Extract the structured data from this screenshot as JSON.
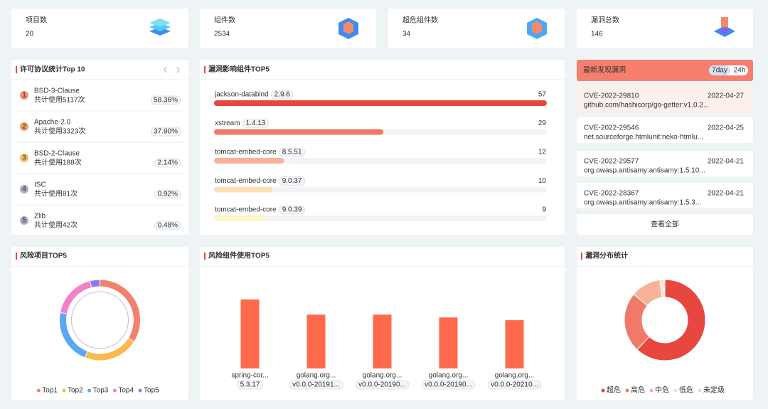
{
  "stats": [
    {
      "label": "项目数",
      "value": 20
    },
    {
      "label": "组件数",
      "value": 2534
    },
    {
      "label": "超危组件数",
      "value": 34
    },
    {
      "label": "漏洞总数",
      "value": 146
    }
  ],
  "license": {
    "title": "许可协议统计Top 10",
    "colors": [
      "#f07a5a",
      "#f08a4b",
      "#f3b33d",
      "#9aa0b5",
      "#9aa0b5"
    ],
    "items": [
      {
        "rank": 1,
        "name": "BSD-3-Clause",
        "usage": "共计使用5117次",
        "share": "58.36%"
      },
      {
        "rank": 2,
        "name": "Apache-2.0",
        "usage": "共计使用3323次",
        "share": "37.90%"
      },
      {
        "rank": 3,
        "name": "BSD-2-Clause",
        "usage": "共计使用188次",
        "share": "2.14%"
      },
      {
        "rank": 4,
        "name": "ISC",
        "usage": "共计使用81次",
        "share": "0.92%"
      },
      {
        "rank": 5,
        "name": "Zlib",
        "usage": "共计使用42次",
        "share": "0.48%"
      }
    ]
  },
  "vuln_components": {
    "title": "漏洞影响组件TOP5",
    "colors": [
      "#e8473f",
      "#f07a68",
      "#f7b29a",
      "#fbe0b8",
      "#fdf7c8"
    ],
    "items": [
      {
        "name": "jackson-databind",
        "version": "2.9.6",
        "count": 57
      },
      {
        "name": "xstream",
        "version": "1.4.13",
        "count": 29
      },
      {
        "name": "tomcat-embed-core",
        "version": "8.5.51",
        "count": 12
      },
      {
        "name": "tomcat-embed-core",
        "version": "9.0.37",
        "count": 10
      },
      {
        "name": "tomcat-embed-core",
        "version": "9.0.39",
        "count": 9
      }
    ]
  },
  "latest": {
    "title": "最新发现漏洞",
    "tabs": [
      "7day",
      "24h"
    ],
    "items": [
      {
        "id": "CVE-2022-29810",
        "date": "2022-04-27",
        "package": "github.com/hashicorp/go-getter:v1.0.2..."
      },
      {
        "id": "CVE-2022-29546",
        "date": "2022-04-25",
        "package": "net.sourceforge.htmlunit:neko-htmlu..."
      },
      {
        "id": "CVE-2022-29577",
        "date": "2022-04-21",
        "package": "org.owasp.antisamy:antisamy:1.5.10..."
      },
      {
        "id": "CVE-2022-28367",
        "date": "2022-04-21",
        "package": "org.owasp.antisamy:antisamy:1.5.3..."
      }
    ],
    "view_all": "查看全部"
  },
  "chart_data": [
    {
      "type": "pie",
      "title": "风险项目TOP5",
      "categories": [
        "Top1",
        "Top2",
        "Top3",
        "Top4",
        "Top5"
      ],
      "values": [
        34,
        22,
        22,
        18,
        4
      ],
      "colors": [
        "#f47f6b",
        "#fbb84c",
        "#5aa7f6",
        "#f57fc8",
        "#8c7ae6"
      ]
    },
    {
      "type": "bar",
      "title": "风险组件使用TOP5",
      "categories": [
        "spring-cor...",
        "golang.org...",
        "golang.org...",
        "golang.org...",
        "golang.org..."
      ],
      "versions": [
        "5.3.17",
        "v0.0.0-20191...",
        "v0.0.0-20190...",
        "v0.0.0-20190...",
        "v0.0.0-20210..."
      ],
      "values": [
        100,
        78,
        78,
        74,
        70
      ],
      "color": "#ff6a4d"
    },
    {
      "type": "pie",
      "title": "漏洞分布统计",
      "categories": [
        "超危",
        "高危",
        "中危",
        "低危",
        "未定级"
      ],
      "values": [
        62,
        24,
        12,
        1.5,
        0.5
      ],
      "colors": [
        "#e8473f",
        "#f07a68",
        "#f7b29a",
        "#fbe0b8",
        "#dddddd"
      ]
    }
  ]
}
